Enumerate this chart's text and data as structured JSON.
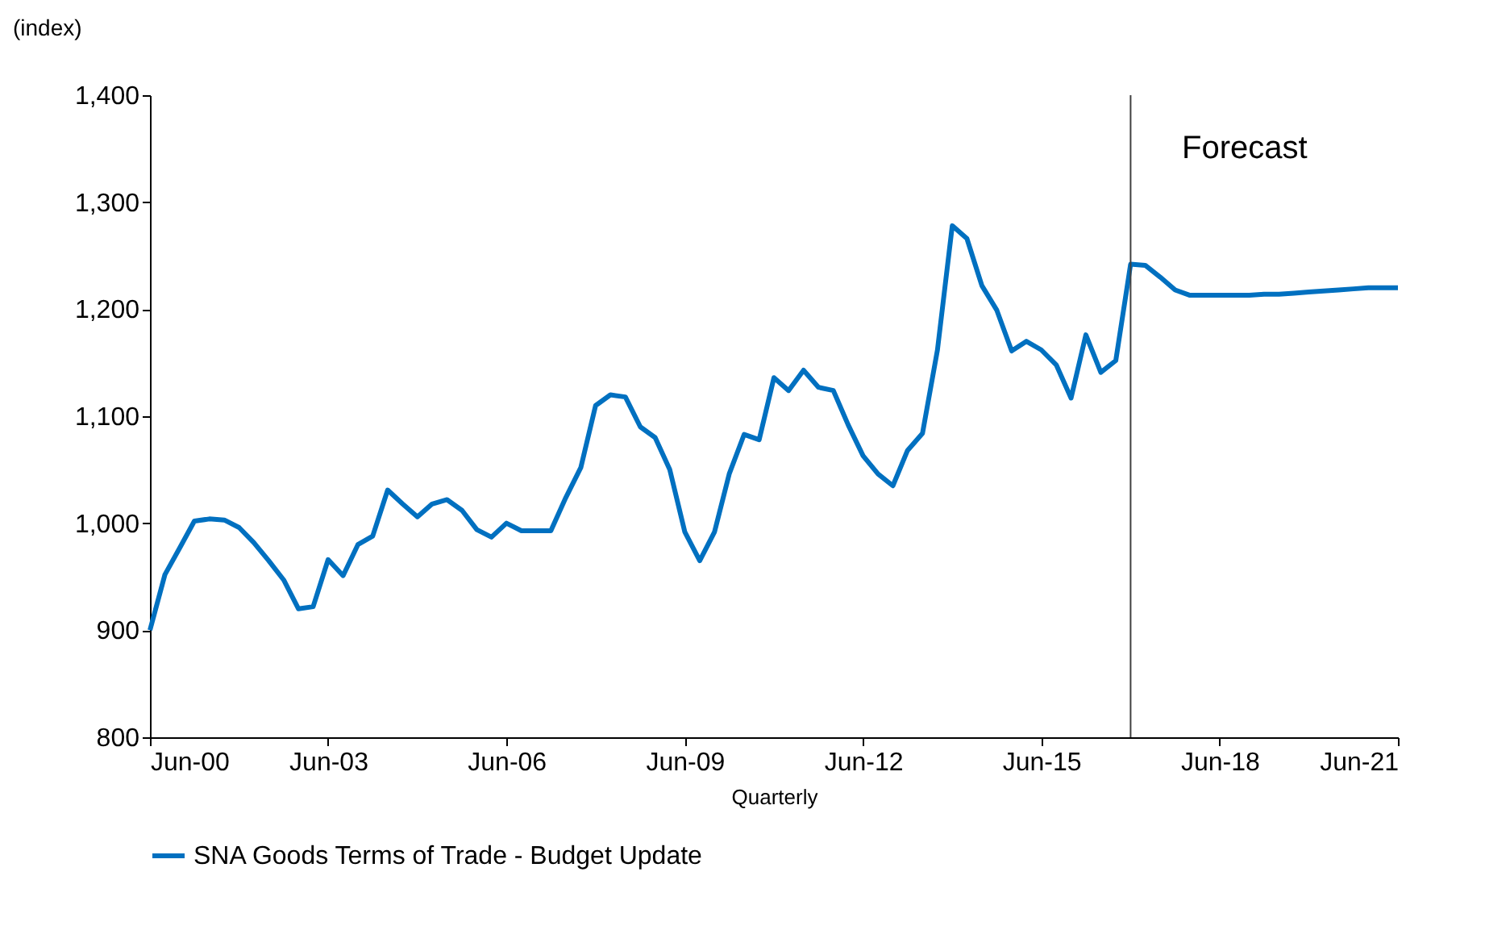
{
  "chart_data": {
    "type": "line",
    "ylabel": "(index)",
    "xlabel": "Quarterly",
    "x": [
      "2000-06",
      "2000-09",
      "2000-12",
      "2001-03",
      "2001-06",
      "2001-09",
      "2001-12",
      "2002-03",
      "2002-06",
      "2002-09",
      "2002-12",
      "2003-03",
      "2003-06",
      "2003-09",
      "2003-12",
      "2004-03",
      "2004-06",
      "2004-09",
      "2004-12",
      "2005-03",
      "2005-06",
      "2005-09",
      "2005-12",
      "2006-03",
      "2006-06",
      "2006-09",
      "2006-12",
      "2007-03",
      "2007-06",
      "2007-09",
      "2007-12",
      "2008-03",
      "2008-06",
      "2008-09",
      "2008-12",
      "2009-03",
      "2009-06",
      "2009-09",
      "2009-12",
      "2010-03",
      "2010-06",
      "2010-09",
      "2010-12",
      "2011-03",
      "2011-06",
      "2011-09",
      "2011-12",
      "2012-03",
      "2012-06",
      "2012-09",
      "2012-12",
      "2013-03",
      "2013-06",
      "2013-09",
      "2013-12",
      "2014-03",
      "2014-06",
      "2014-09",
      "2014-12",
      "2015-03",
      "2015-06",
      "2015-09",
      "2015-12",
      "2016-03",
      "2016-06",
      "2016-09",
      "2016-12",
      "2017-03",
      "2017-06",
      "2017-09",
      "2017-12",
      "2018-03",
      "2018-06",
      "2018-09",
      "2018-12",
      "2019-03",
      "2019-06",
      "2019-09",
      "2019-12",
      "2020-03",
      "2020-06",
      "2020-09",
      "2020-12",
      "2021-03",
      "2021-06"
    ],
    "series": [
      {
        "name": "SNA Goods Terms of Trade - Budget Update",
        "color": "#0070c0",
        "values": [
          900,
          952,
          977,
          1002,
          1004,
          1003,
          996,
          982,
          965,
          947,
          920,
          922,
          966,
          951,
          980,
          988,
          1031,
          1018,
          1006,
          1018,
          1022,
          1012,
          994,
          987,
          1000,
          993,
          993,
          993,
          1024,
          1052,
          1110,
          1120,
          1118,
          1090,
          1080,
          1050,
          992,
          965,
          992,
          1046,
          1083,
          1078,
          1136,
          1124,
          1143,
          1127,
          1124,
          1092,
          1063,
          1046,
          1035,
          1068,
          1084,
          1162,
          1278,
          1266,
          1222,
          1199,
          1161,
          1170,
          1162,
          1148,
          1117,
          1176,
          1141,
          1152,
          1242,
          1241,
          1230,
          1218,
          1213,
          1213,
          1213,
          1213,
          1213,
          1214,
          1214,
          1215,
          1216,
          1217,
          1218,
          1219,
          1220,
          1220,
          1220
        ]
      }
    ],
    "xlim": [
      "2000-06",
      "2021-06"
    ],
    "xticks": [
      {
        "value": "2000-06",
        "label": "Jun-00"
      },
      {
        "value": "2003-06",
        "label": "Jun-03"
      },
      {
        "value": "2006-06",
        "label": "Jun-06"
      },
      {
        "value": "2009-06",
        "label": "Jun-09"
      },
      {
        "value": "2012-06",
        "label": "Jun-12"
      },
      {
        "value": "2015-06",
        "label": "Jun-15"
      },
      {
        "value": "2018-06",
        "label": "Jun-18"
      },
      {
        "value": "2021-06",
        "label": "Jun-21"
      }
    ],
    "ylim": [
      800,
      1400
    ],
    "yticks": [
      {
        "value": 800,
        "label": "800"
      },
      {
        "value": 900,
        "label": "900"
      },
      {
        "value": 1000,
        "label": "1,000"
      },
      {
        "value": 1100,
        "label": "1,100"
      },
      {
        "value": 1200,
        "label": "1,200"
      },
      {
        "value": 1300,
        "label": "1,300"
      },
      {
        "value": 1400,
        "label": "1,400"
      }
    ],
    "ref_lines": [
      {
        "axis": "x",
        "value": "2016-12",
        "color": "#404040"
      }
    ],
    "annotations": [
      "Forecast"
    ],
    "grid": false,
    "legend": "bottom",
    "marker": "none",
    "line_style": "solid"
  }
}
